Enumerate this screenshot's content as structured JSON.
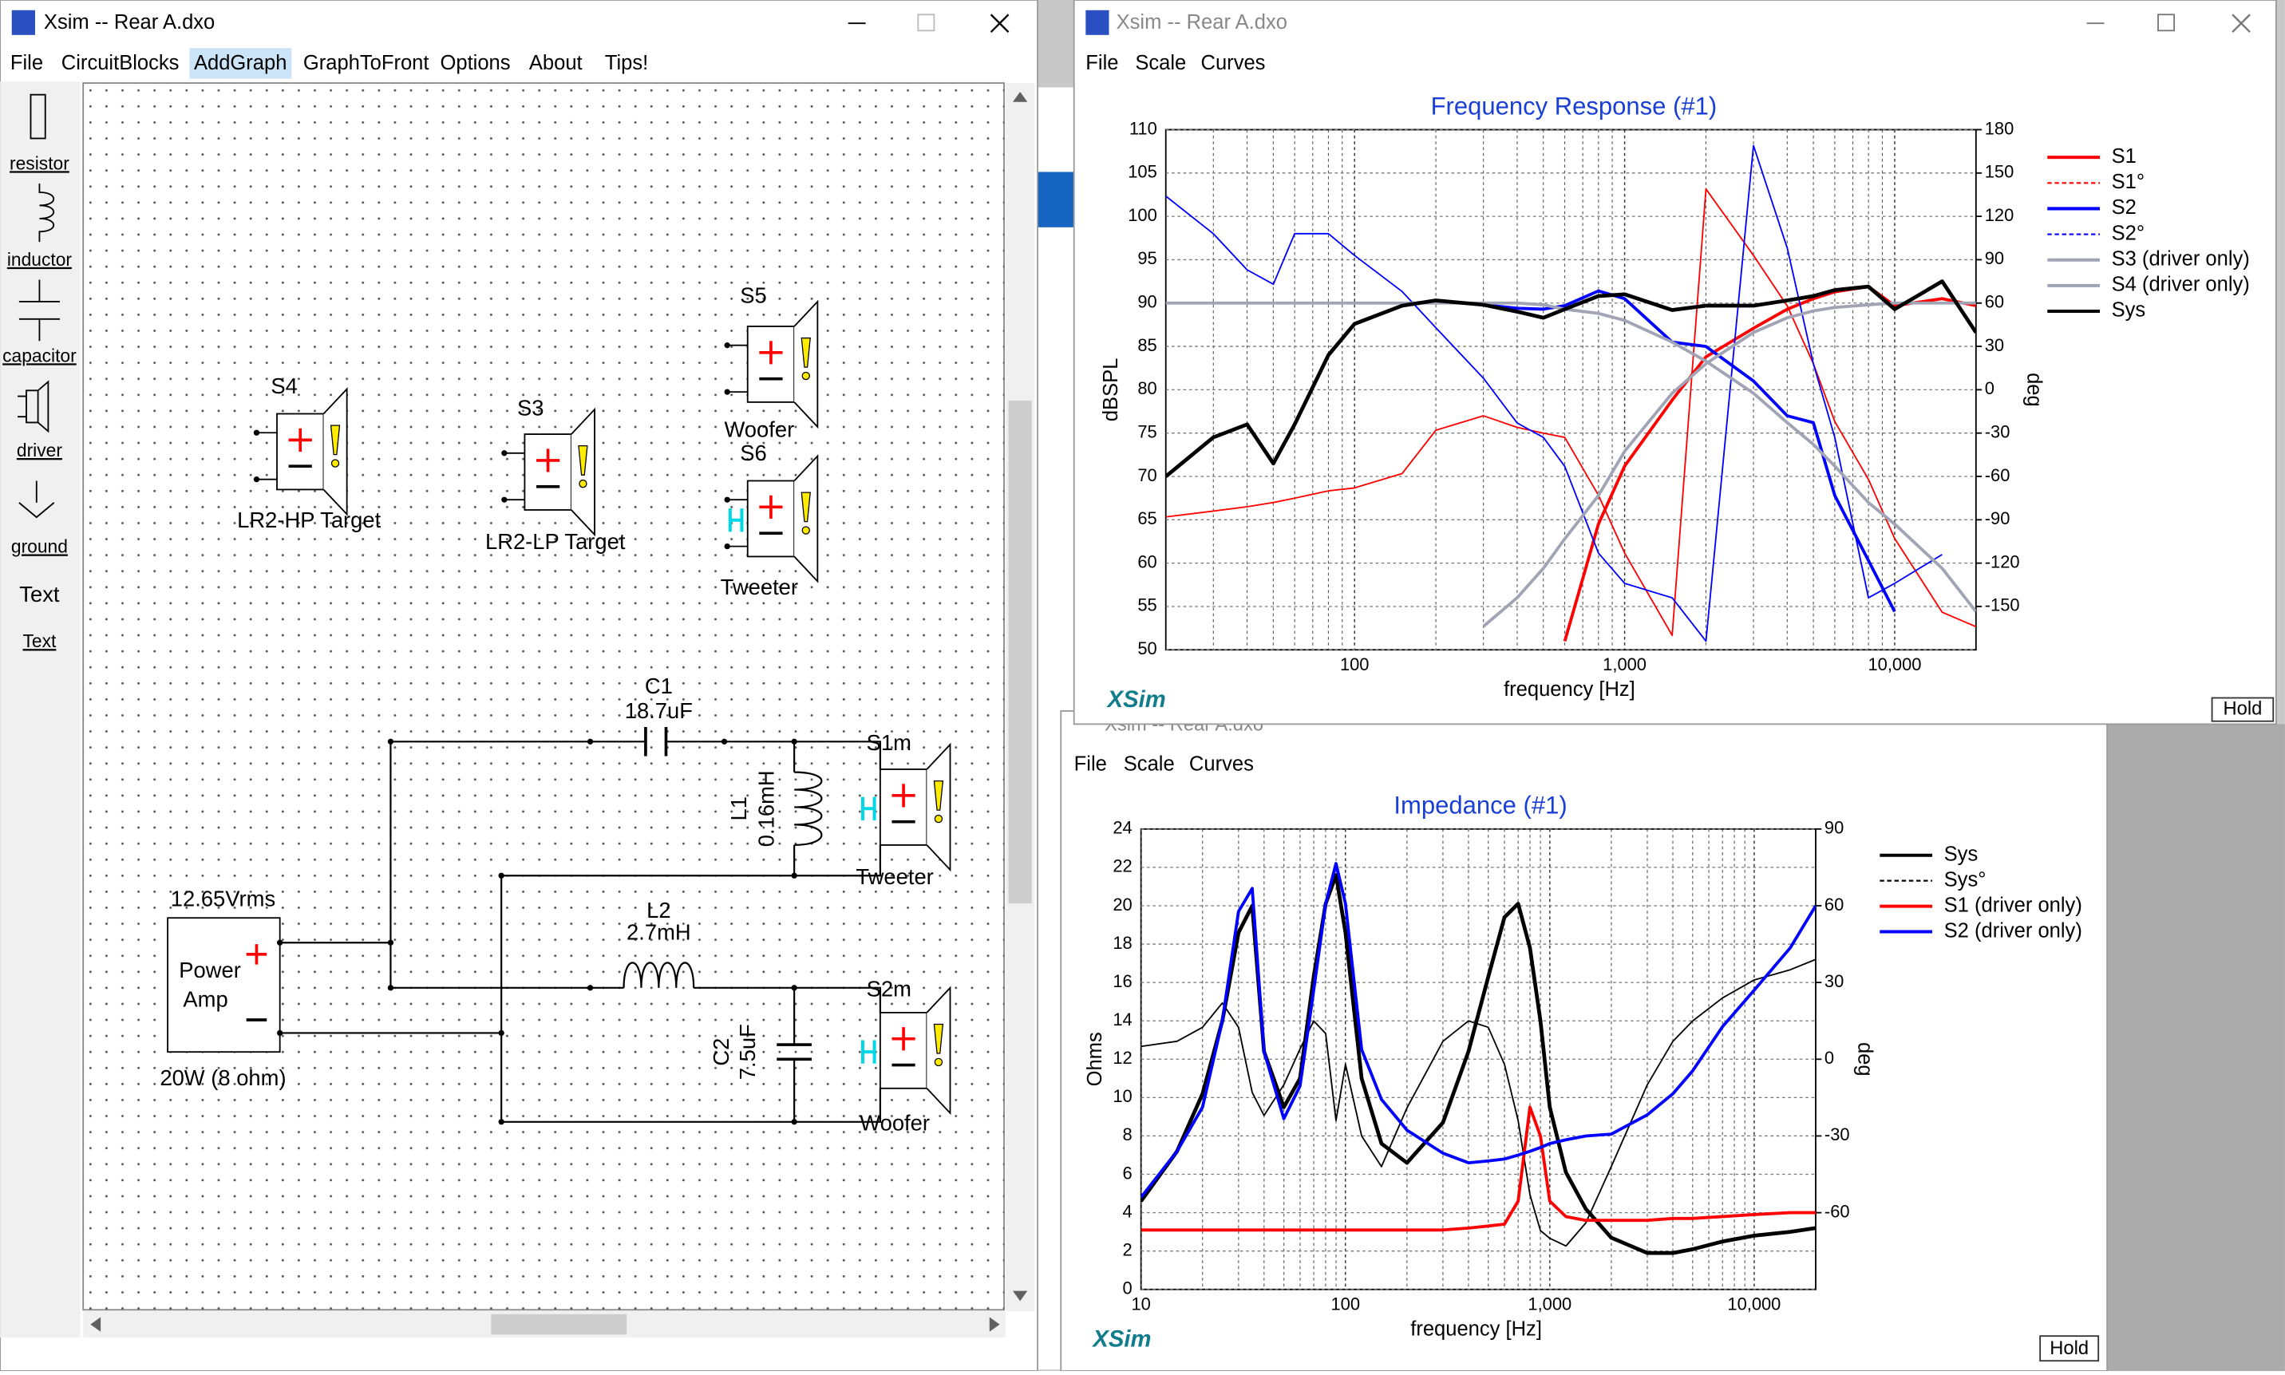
{
  "circuit_window": {
    "title": "Xsim -- Rear A.dxo",
    "menu": [
      "File",
      "CircuitBlocks",
      "AddGraph",
      "GraphToFront",
      "Options",
      "About",
      "Tips!"
    ],
    "toolbar": [
      "resistor",
      "inductor",
      "capacitor",
      "driver",
      "ground",
      "Text",
      "Text"
    ],
    "parts": {
      "s4": {
        "name": "S4",
        "label": "LR2-HP Target"
      },
      "s3": {
        "name": "S3",
        "label": "LR2-LP Target"
      },
      "s5": {
        "name": "S5",
        "label": "Woofer"
      },
      "s6": {
        "name": "S6",
        "label": "Tweeter"
      },
      "c1": {
        "name": "C1",
        "value": "18.7uF"
      },
      "l1": {
        "name": "L1",
        "value": "0.16mH"
      },
      "s1m": {
        "name": "S1m",
        "label": "Tweeter"
      },
      "l2": {
        "name": "L2",
        "value": "2.7mH"
      },
      "c2": {
        "name": "C2",
        "value": "7.5uF"
      },
      "s2m": {
        "name": "S2m",
        "label": "Woofer"
      },
      "amp": {
        "label": [
          "Power",
          "Amp"
        ],
        "voltage": "12.65Vrms",
        "power": "20W (8 ohm)"
      }
    }
  },
  "fr_window": {
    "title": "Xsim -- Rear A.dxo",
    "menu": [
      "File",
      "Scale",
      "Curves"
    ],
    "logo": "XSim",
    "button": "Hold"
  },
  "imp_window": {
    "title": "Xsim -- Rear A.dxo",
    "menu": [
      "File",
      "Scale",
      "Curves"
    ],
    "logo": "XSim",
    "button": "Hold"
  },
  "chart_data": [
    {
      "type": "line",
      "title": "Frequency Response (#1)",
      "x_label": "frequency [Hz]",
      "y_label": "dBSPL",
      "y2_label": "deg",
      "xscale": "log",
      "grid": true,
      "xlim": [
        20,
        20000
      ],
      "xticks": [
        100,
        {
          "value": 1000,
          "label": "1,000"
        },
        {
          "value": 10000,
          "label": "10,000"
        }
      ],
      "ylim": [
        50,
        110
      ],
      "yticks": [
        50,
        55,
        60,
        65,
        70,
        75,
        80,
        85,
        90,
        95,
        100,
        105,
        110
      ],
      "y2lim": [
        -180,
        180
      ],
      "y2ticks": [
        -150,
        -120,
        -90,
        -60,
        -30,
        0,
        30,
        60,
        90,
        120,
        150,
        180
      ],
      "x": [
        20,
        30,
        40,
        50,
        60,
        80,
        100,
        150,
        200,
        300,
        400,
        500,
        600,
        800,
        1000,
        1500,
        2000,
        3000,
        4000,
        5000,
        6000,
        8000,
        10000,
        15000,
        20000
      ],
      "series": [
        {
          "name": "S1",
          "color": "#ff0000",
          "values": [
            null,
            null,
            null,
            null,
            null,
            null,
            null,
            null,
            null,
            null,
            null,
            null,
            51,
            64.5,
            71.2,
            78.8,
            83.8,
            87.1,
            89.3,
            90.5,
            91.3,
            91.9,
            89.7,
            90.5,
            89.7
          ]
        },
        {
          "name": "S1°",
          "color": "#ff0000",
          "style": "dashed",
          "axis": "y2",
          "values": [
            -88,
            -84,
            -81,
            -78,
            -75,
            -70,
            -68,
            -58,
            -28,
            -18,
            -26,
            -30,
            -33,
            -73,
            -113,
            -170,
            139,
            93,
            58,
            18,
            -22,
            -62,
            -103,
            -154,
            -164
          ]
        },
        {
          "name": "S2",
          "color": "#0000ff",
          "values": [
            70,
            74.5,
            76,
            71.5,
            76,
            84,
            87.6,
            89.7,
            90.3,
            89.8,
            89.4,
            89.3,
            89.7,
            91.4,
            90.5,
            85.5,
            85,
            81,
            77,
            76.2,
            67.8,
            60.3,
            54.4,
            null,
            null
          ]
        },
        {
          "name": "S2°",
          "color": "#0000ff",
          "style": "dashed",
          "axis": "y2",
          "values": [
            134,
            108,
            83,
            73,
            108,
            108,
            93,
            68,
            43,
            8,
            -23,
            -33,
            -53,
            -113,
            -134,
            -144,
            -174,
            169,
            98,
            18,
            -33,
            -144,
            -134,
            -114,
            null
          ]
        },
        {
          "name": "S3 (driver only)",
          "color": "#a0a4b4",
          "values": [
            null,
            null,
            null,
            null,
            null,
            null,
            null,
            null,
            null,
            52.7,
            56,
            59.4,
            62.8,
            67.8,
            72.9,
            79.6,
            83,
            86.6,
            88.3,
            89.1,
            89.5,
            89.8,
            90,
            90,
            90
          ]
        },
        {
          "name": "S4 (driver only)",
          "color": "#a0a4b4",
          "values": [
            90,
            90,
            90,
            90,
            90,
            90,
            90,
            90,
            90,
            90,
            90,
            89.8,
            89.3,
            88.8,
            88,
            85.5,
            83.3,
            79.6,
            76.2,
            73.7,
            71.2,
            67,
            64.5,
            59.4,
            54.4
          ]
        },
        {
          "name": "Sys",
          "color": "#000000",
          "values": [
            70,
            74.5,
            76,
            71.5,
            76,
            84,
            87.6,
            89.7,
            90.3,
            89.8,
            89,
            88.3,
            89.3,
            90.8,
            91,
            89.2,
            89.7,
            89.7,
            90.3,
            90.8,
            91.5,
            91.9,
            89.3,
            92.5,
            86.6
          ]
        }
      ]
    },
    {
      "type": "line",
      "title": "Impedance (#1)",
      "x_label": "frequency [Hz]",
      "y_label": "Ohms",
      "y2_label": "deg",
      "xscale": "log",
      "grid": true,
      "xlim": [
        10,
        20000
      ],
      "xticks": [
        10,
        100,
        {
          "value": 1000,
          "label": "1,000"
        },
        {
          "value": 10000,
          "label": "10,000"
        }
      ],
      "ylim": [
        0,
        24
      ],
      "yticks": [
        0,
        2,
        4,
        6,
        8,
        10,
        12,
        14,
        16,
        18,
        20,
        22,
        24
      ],
      "y2lim": [
        -90,
        90
      ],
      "y2ticks": [
        -60,
        -30,
        0,
        30,
        60,
        90
      ],
      "x": [
        10,
        15,
        20,
        25,
        30,
        35,
        40,
        50,
        60,
        70,
        80,
        90,
        100,
        120,
        150,
        200,
        300,
        400,
        500,
        600,
        700,
        800,
        900,
        1000,
        1200,
        1500,
        2000,
        3000,
        4000,
        5000,
        7000,
        10000,
        15000,
        20000
      ],
      "series": [
        {
          "name": "Sys",
          "color": "#000000",
          "values": [
            4.6,
            7.2,
            10.2,
            14,
            18.6,
            20,
            12.4,
            9.5,
            11,
            16.3,
            20.1,
            21.6,
            18.6,
            11,
            7.6,
            6.6,
            8.7,
            12.4,
            16.3,
            19.4,
            20.1,
            17.8,
            14,
            9.5,
            6.1,
            4.2,
            2.7,
            1.9,
            1.9,
            2.1,
            2.5,
            2.8,
            3,
            3.2
          ]
        },
        {
          "name": "Sys°",
          "color": "#000000",
          "style": "dashed",
          "axis": "y2",
          "values": [
            5,
            7,
            12.5,
            22,
            12.5,
            -13,
            -22,
            -10,
            4,
            15,
            10,
            -24,
            -2,
            -30,
            -42,
            -19,
            7,
            15,
            12.5,
            -2,
            -24,
            -53,
            -67,
            -70,
            -73,
            -64,
            -42,
            -10,
            7,
            15,
            24,
            31,
            35,
            39
          ]
        },
        {
          "name": "S1 (driver only)",
          "color": "#ff0000",
          "values": [
            3.1,
            3.1,
            3.1,
            3.1,
            3.1,
            3.1,
            3.1,
            3.1,
            3.1,
            3.1,
            3.1,
            3.1,
            3.1,
            3.1,
            3.1,
            3.1,
            3.1,
            3.2,
            3.3,
            3.4,
            4.6,
            9.5,
            8,
            4.6,
            3.8,
            3.6,
            3.6,
            3.6,
            3.7,
            3.7,
            3.8,
            3.9,
            4,
            4
          ]
        },
        {
          "name": "S2 (driver only)",
          "color": "#0000ff",
          "values": [
            4.8,
            7.2,
            9.5,
            14,
            19.7,
            20.9,
            12.4,
            8.9,
            10.6,
            15.6,
            20.1,
            22.2,
            20.1,
            12.5,
            9.9,
            8.3,
            7.1,
            6.6,
            6.7,
            6.8,
            7,
            7.2,
            7.4,
            7.6,
            7.8,
            8,
            8.1,
            9.1,
            10.2,
            11.4,
            13.7,
            15.6,
            17.8,
            20
          ]
        }
      ]
    }
  ]
}
